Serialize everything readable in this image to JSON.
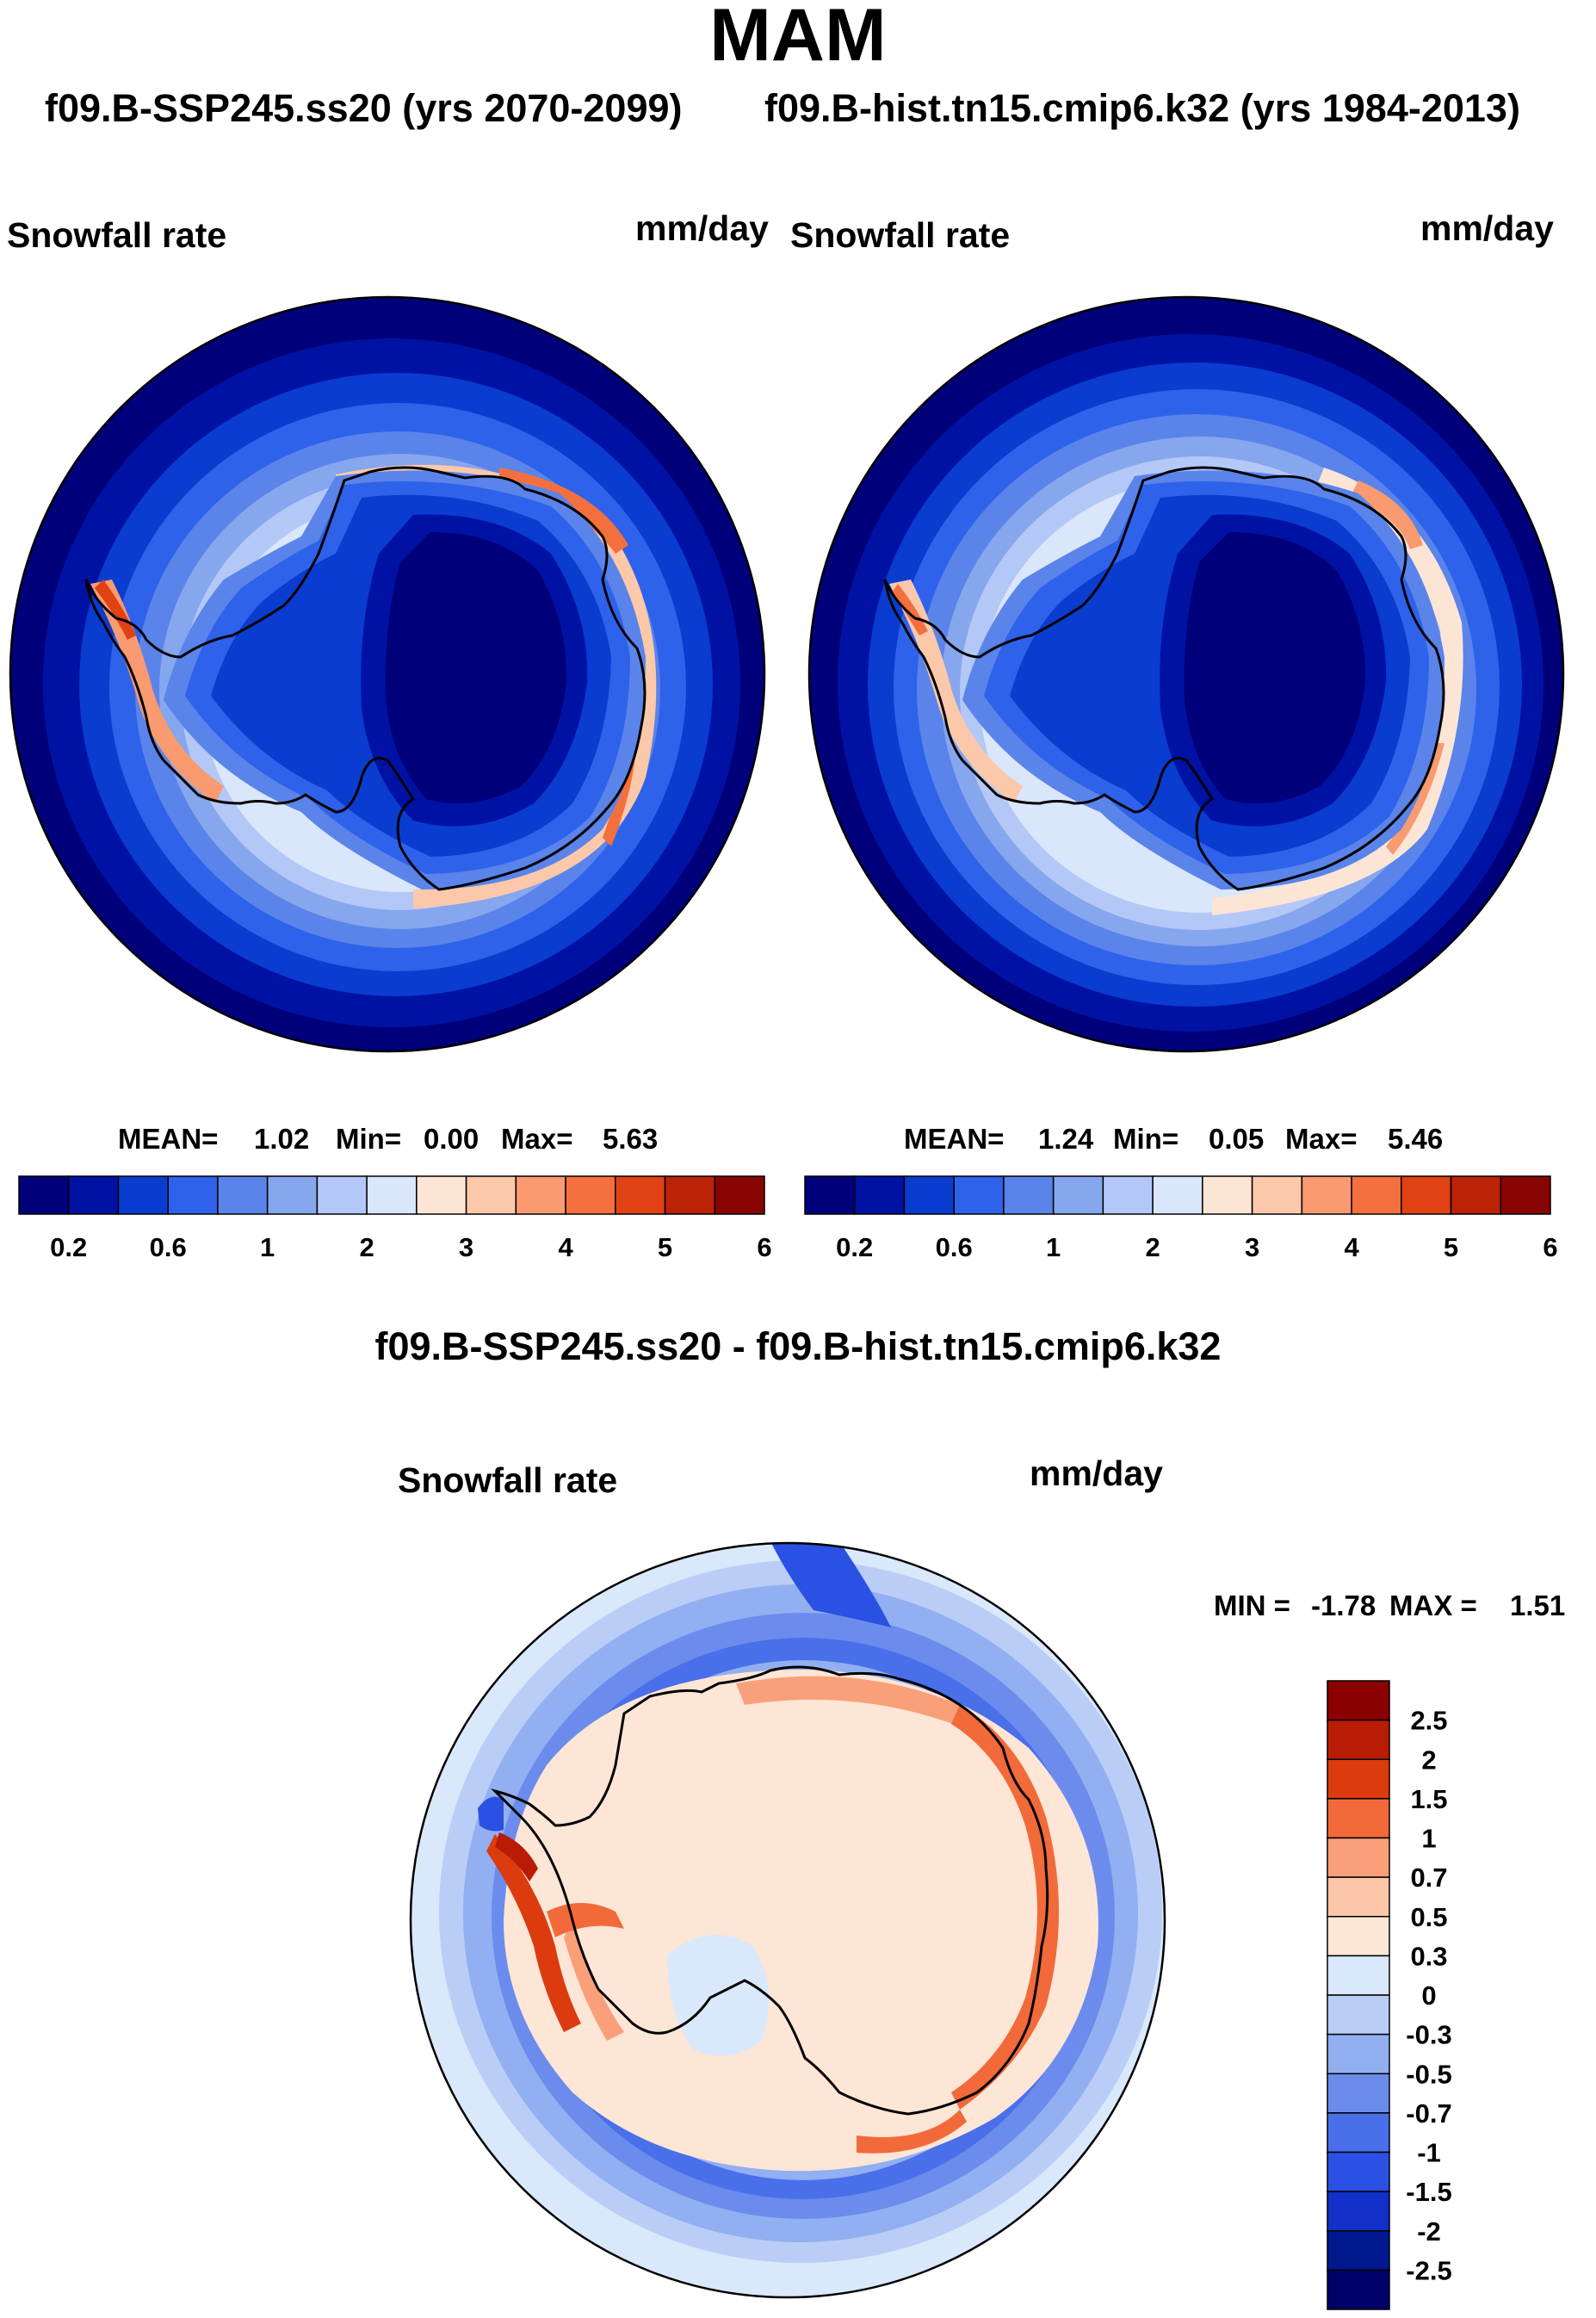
{
  "figure": {
    "season": "MAM",
    "case_a": "f09.B-SSP245.ss20 (yrs 2070-2099)",
    "case_b": "f09.B-hist.tn15.cmip6.k32 (yrs 1984-2013)",
    "diff_title": "f09.B-SSP245.ss20 - f09.B-hist.tn15.cmip6.k32"
  },
  "panels": {
    "left": {
      "variable": "Snowfall rate",
      "units": "mm/day",
      "mean": "1.02",
      "min": "0.00",
      "max": "5.63"
    },
    "right": {
      "variable": "Snowfall rate",
      "units": "mm/day",
      "mean": "1.24",
      "min": "0.05",
      "max": "5.46"
    },
    "diff": {
      "variable": "Snowfall rate",
      "units": "mm/day",
      "min": "-1.78",
      "max": "1.51"
    }
  },
  "stat_labels": {
    "mean": "MEAN=",
    "min": "Min=",
    "max": "Max=",
    "diff_min": "MIN =",
    "diff_max": "MAX ="
  },
  "chart_data": [
    {
      "type": "heatmap",
      "title": "Snowfall rate",
      "subtitle": "f09.B-SSP245.ss20 (yrs 2070-2099)",
      "units": "mm/day",
      "projection": "south polar stereographic",
      "colorbar": {
        "orientation": "horizontal",
        "tick_labels": [
          "0.2",
          "0.6",
          "1",
          "2",
          "3",
          "4",
          "5",
          "6"
        ],
        "colors": [
          "#00007a",
          "#0012a4",
          "#0a3ccf",
          "#2f62ea",
          "#5a84ea",
          "#86a6ee",
          "#b3c8f6",
          "#dae6fb",
          "#fde5d6",
          "#fcc8aa",
          "#f99a70",
          "#f46f3e",
          "#e04214",
          "#bc2205",
          "#880402"
        ]
      },
      "stats": {
        "mean": 1.02,
        "min": 0.0,
        "max": 5.63
      }
    },
    {
      "type": "heatmap",
      "title": "Snowfall rate",
      "subtitle": "f09.B-hist.tn15.cmip6.k32 (yrs 1984-2013)",
      "units": "mm/day",
      "projection": "south polar stereographic",
      "colorbar": {
        "orientation": "horizontal",
        "tick_labels": [
          "0.2",
          "0.6",
          "1",
          "2",
          "3",
          "4",
          "5",
          "6"
        ],
        "colors": [
          "#00007a",
          "#0012a4",
          "#0a3ccf",
          "#2f62ea",
          "#5a84ea",
          "#86a6ee",
          "#b3c8f6",
          "#dae6fb",
          "#fde5d6",
          "#fcc8aa",
          "#f99a70",
          "#f46f3e",
          "#e04214",
          "#bc2205",
          "#880402"
        ]
      },
      "stats": {
        "mean": 1.24,
        "min": 0.05,
        "max": 5.46
      }
    },
    {
      "type": "heatmap",
      "title": "Snowfall rate",
      "subtitle": "f09.B-SSP245.ss20 - f09.B-hist.tn15.cmip6.k32",
      "units": "mm/day",
      "projection": "south polar stereographic",
      "colorbar": {
        "orientation": "vertical",
        "tick_labels": [
          "2.5",
          "2",
          "1.5",
          "1",
          "0.7",
          "0.5",
          "0.3",
          "0",
          "-0.3",
          "-0.5",
          "-0.7",
          "-1",
          "-1.5",
          "-2",
          "-2.5"
        ],
        "colors": [
          "#8b0000",
          "#b81c05",
          "#dc3b0e",
          "#f26a3a",
          "#f9a07a",
          "#fcc7a8",
          "#fde6d6",
          "#dae8fb",
          "#b9cdf7",
          "#92aff1",
          "#6b8cec",
          "#4a6fea",
          "#2a51e3",
          "#1030c8",
          "#00188e",
          "#000068"
        ]
      },
      "stats": {
        "min": -1.78,
        "max": 1.51
      }
    }
  ]
}
